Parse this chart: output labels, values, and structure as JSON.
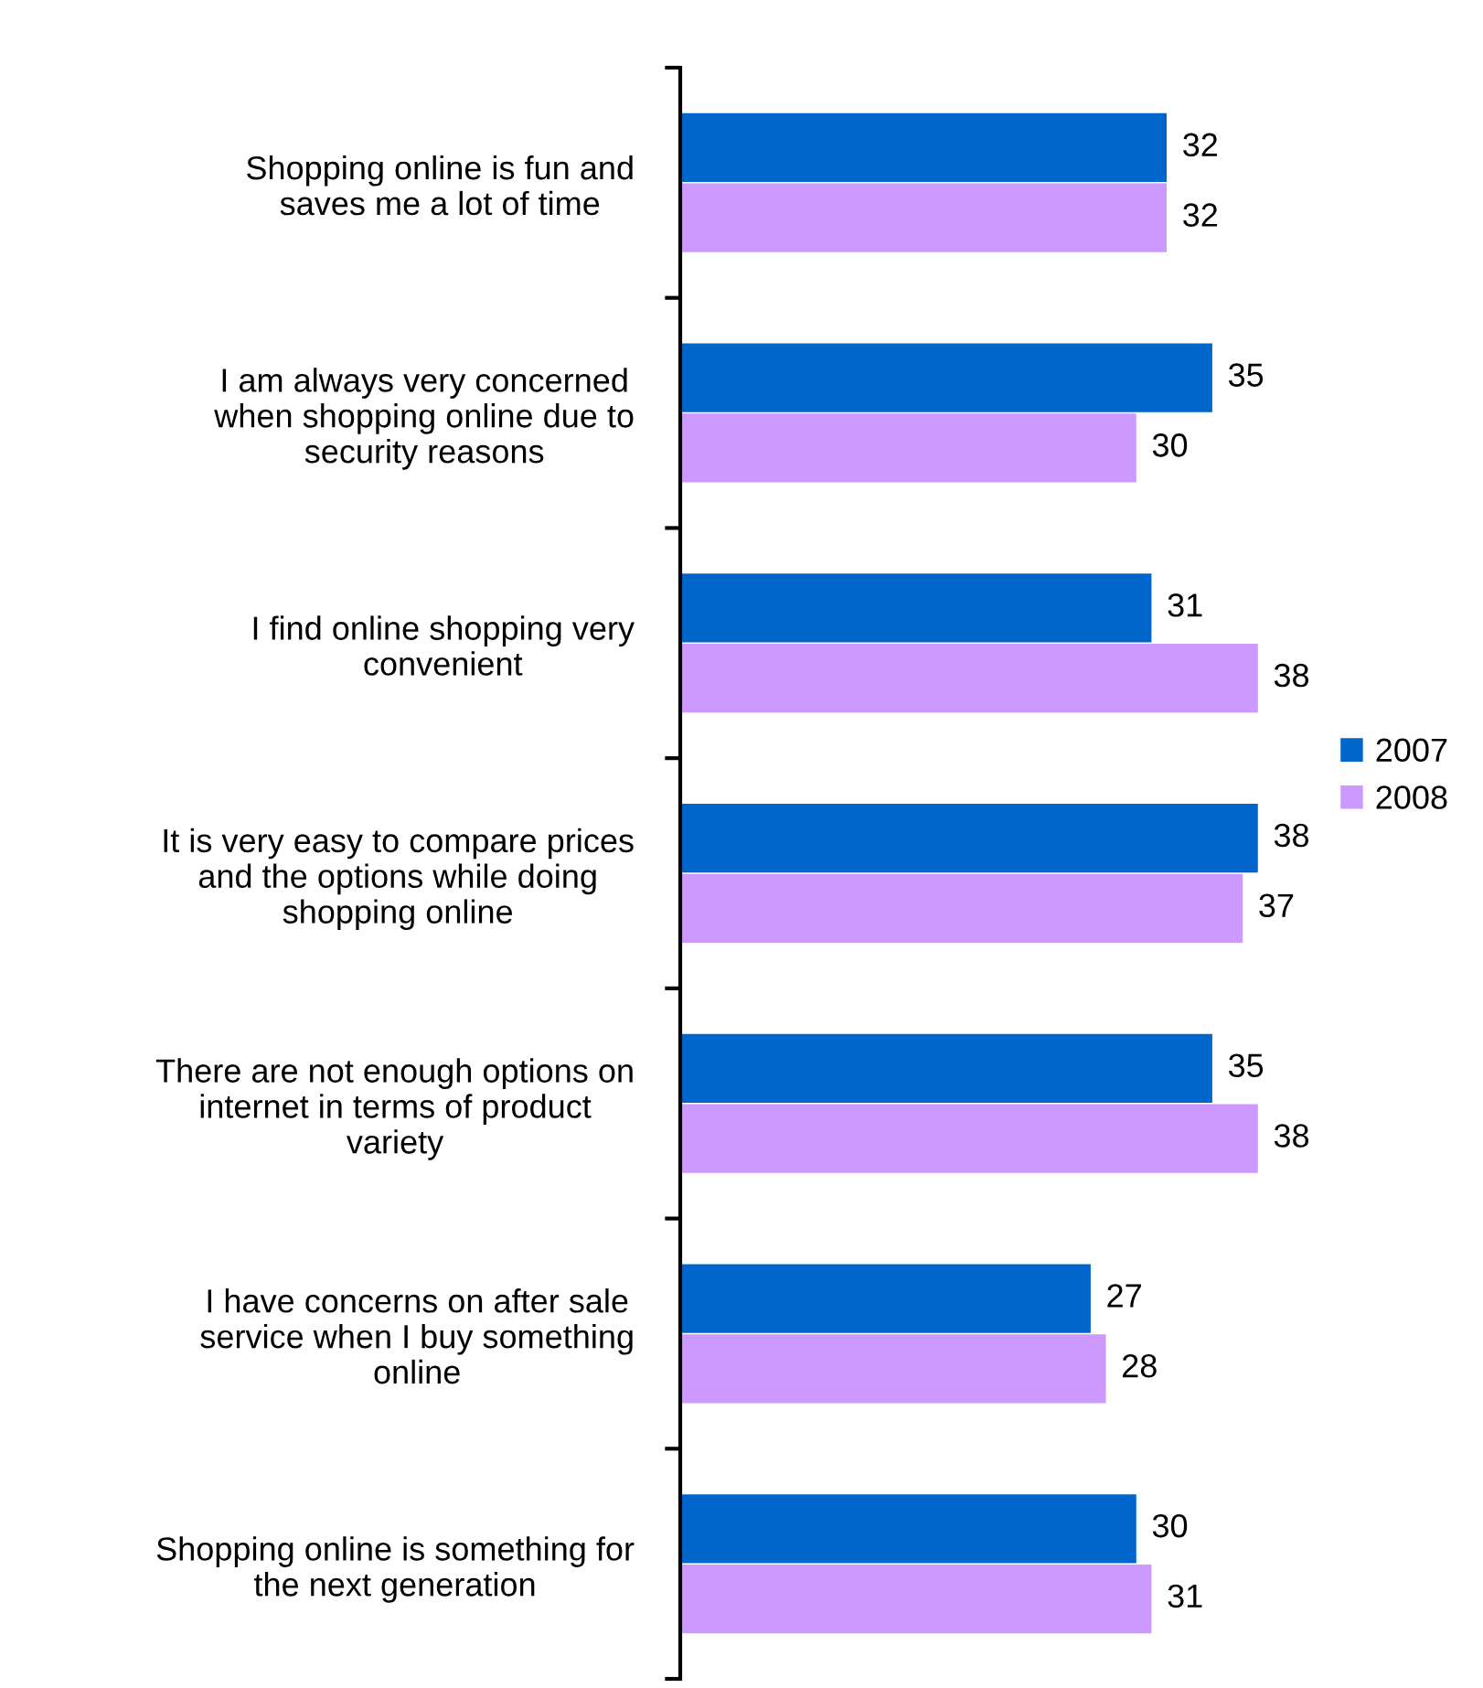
{
  "chart_data": {
    "type": "bar",
    "orientation": "horizontal",
    "data_labels": true,
    "legend": "right",
    "grid": false,
    "tick_labels": "y",
    "categories": [
      "Shopping online is fun and\nsaves me a lot of time",
      "I am always very concerned\nwhen shopping online due to\nsecurity reasons",
      "I find online shopping very\nconvenient",
      "It is very easy to compare prices\nand the options while doing\nshopping online",
      "There are not enough options on\ninternet in terms of product\nvariety",
      "I have concerns on after sale\nservice when I buy something\nonline",
      "Shopping online is something for\nthe next generation"
    ],
    "series": [
      {
        "name": "2007",
        "color": "#0066cc",
        "values": [
          32,
          35,
          31,
          38,
          35,
          27,
          30
        ]
      },
      {
        "name": "2008",
        "color": "#cc99ff",
        "values": [
          32,
          30,
          38,
          37,
          38,
          28,
          31
        ]
      }
    ]
  }
}
